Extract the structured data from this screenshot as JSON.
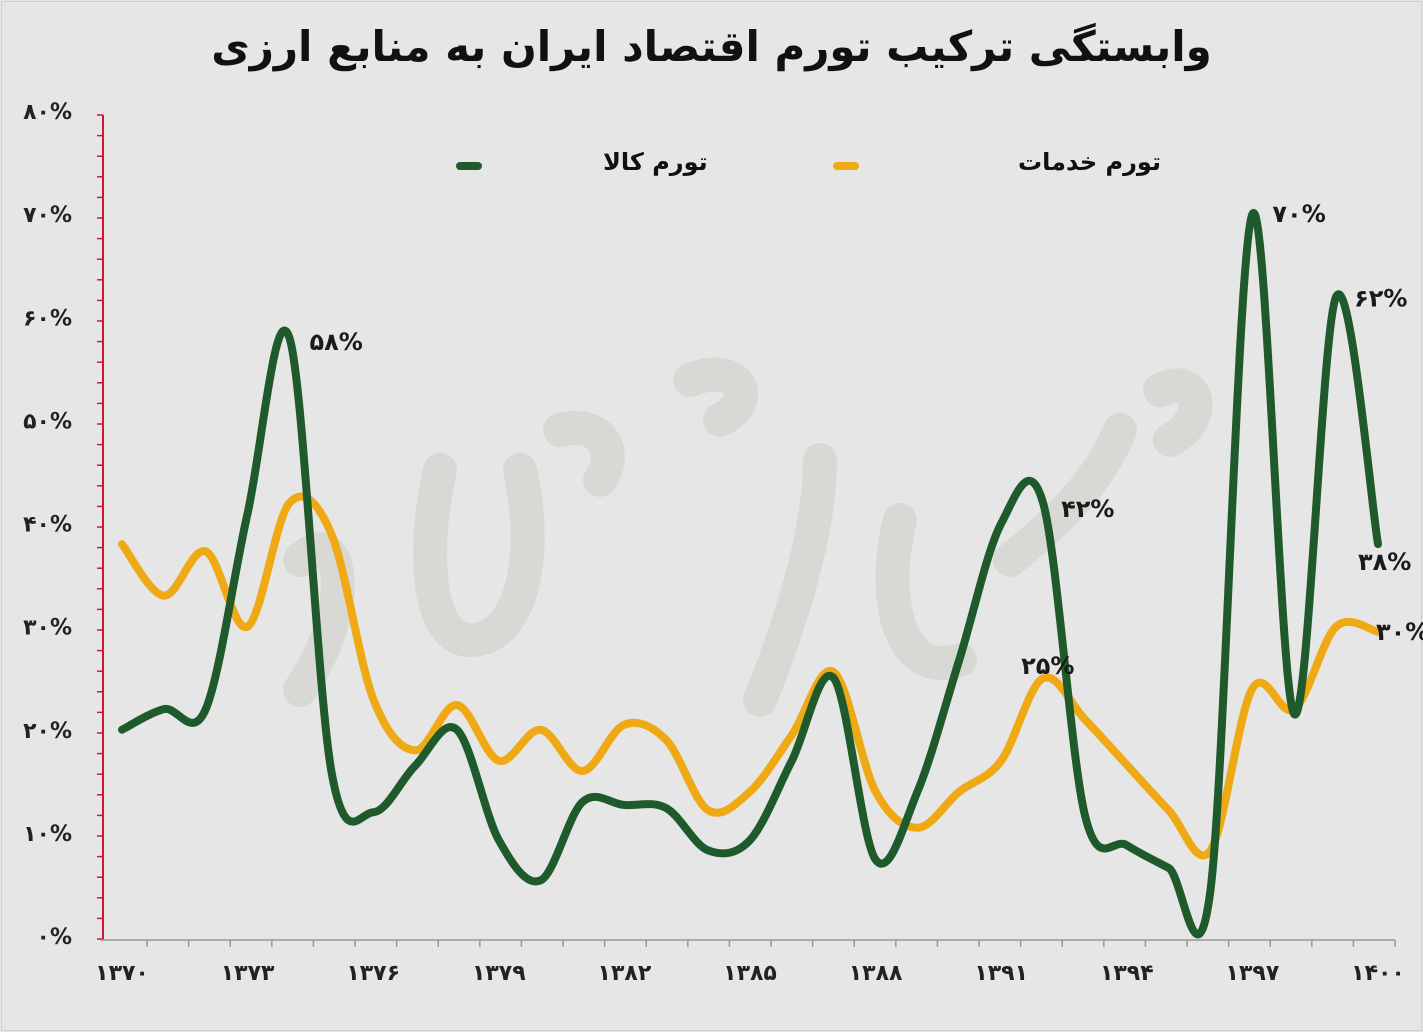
{
  "chart_data": {
    "type": "line",
    "title": "وابستگی ترکیب تورم اقتصاد ایران به منابع ارزی",
    "watermark": "فردای اقتصاد",
    "xlabel": "",
    "ylabel": "",
    "x": [
      1370,
      1371,
      1372,
      1373,
      1374,
      1375,
      1376,
      1377,
      1378,
      1379,
      1380,
      1381,
      1382,
      1383,
      1384,
      1385,
      1386,
      1387,
      1388,
      1389,
      1390,
      1391,
      1392,
      1393,
      1394,
      1395,
      1396,
      1397,
      1398,
      1399,
      1400
    ],
    "xticks": [
      1370,
      1373,
      1376,
      1379,
      1382,
      1385,
      1388,
      1391,
      1394,
      1397,
      1400
    ],
    "xtick_labels": [
      "۱۳۷۰",
      "۱۳۷۳",
      "۱۳۷۶",
      "۱۳۷۹",
      "۱۳۸۲",
      "۱۳۸۵",
      "۱۳۸۸",
      "۱۳۹۱",
      "۱۳۹۴",
      "۱۳۹۷",
      "۱۴۰۰"
    ],
    "ylim": [
      0,
      80
    ],
    "yticks": [
      0,
      10,
      20,
      30,
      40,
      50,
      60,
      70,
      80
    ],
    "ytick_labels": [
      "۰%",
      "۱۰%",
      "۲۰%",
      "۳۰%",
      "۴۰%",
      "۵۰%",
      "۶۰%",
      "۷۰%",
      "۸۰%"
    ],
    "grid": false,
    "legend_position": "top",
    "series": [
      {
        "name": "تورم کالا",
        "color": "#1e5a2c",
        "values": [
          20,
          22,
          22,
          41,
          58,
          16,
          12,
          16.5,
          20,
          9.3,
          5.4,
          13,
          12.7,
          12.4,
          8.3,
          9.3,
          17,
          25,
          7.4,
          14,
          26.8,
          40,
          42,
          11.7,
          8.8,
          6.6,
          4.5,
          70,
          21.5,
          62,
          38
        ]
      },
      {
        "name": "تورم خدمات",
        "color": "#eea914",
        "values": [
          38,
          33,
          37.3,
          30,
          42,
          39,
          23,
          18,
          22.4,
          17,
          20,
          16,
          20.5,
          19,
          12.2,
          14,
          19.5,
          25.6,
          14,
          10.5,
          14,
          17,
          25,
          21,
          16.6,
          12.2,
          8.3,
          24,
          22,
          30,
          29.5
        ]
      }
    ],
    "annotations": [
      {
        "series": 0,
        "x": 1374,
        "text": "۵۸%"
      },
      {
        "series": 0,
        "x": 1392,
        "text": "۴۲%"
      },
      {
        "series": 0,
        "x": 1397,
        "text": "۷۰%"
      },
      {
        "series": 0,
        "x": 1399,
        "text": "۶۲%"
      },
      {
        "series": 0,
        "x": 1400,
        "text": "۳۸%"
      },
      {
        "series": 1,
        "x": 1392,
        "text": "۲۵%"
      },
      {
        "series": 1,
        "x": 1400,
        "text": "۳۰%"
      }
    ]
  }
}
